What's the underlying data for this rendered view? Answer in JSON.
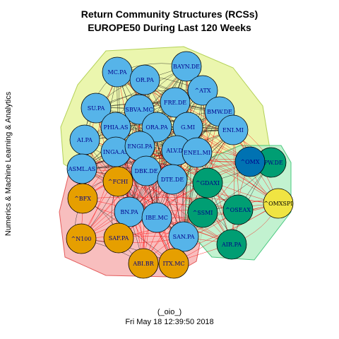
{
  "title_line1": "Return Community Structures (RCSs)",
  "title_line2": "EUROPE50 During Last 120 Weeks",
  "side_label": "Numerics & Machine Learning & Analytics",
  "footer_line1": "(_oio_)",
  "footer_line2": "Fri May 18 12:39:50 2018",
  "colors": {
    "blue": "#56b4e9",
    "orange": "#e69f00",
    "green": "#009e73",
    "dark_blue": "#0072b2",
    "yellow": "#f0e442",
    "edge_within": "#000000",
    "edge_between": "#ff0000",
    "hull_blue": "#e8f5a0",
    "hull_orange": "#f7b3b3",
    "hull_green": "#b8f0c8"
  },
  "nodes": [
    {
      "label": "BAYN.DE",
      "group": "blue"
    },
    {
      "label": "MC.PA",
      "group": "blue"
    },
    {
      "label": "OR.PA",
      "group": "blue"
    },
    {
      "label": "^ATX",
      "group": "blue"
    },
    {
      "label": "SU.PA",
      "group": "blue"
    },
    {
      "label": "SBVA.MC",
      "group": "blue"
    },
    {
      "label": "FRE.DE",
      "group": "blue"
    },
    {
      "label": "BMW.DE",
      "group": "blue"
    },
    {
      "label": "PHIA.AS",
      "group": "blue"
    },
    {
      "label": "ORA.PA",
      "group": "blue"
    },
    {
      "label": "G.MI",
      "group": "blue"
    },
    {
      "label": "ENI.MI",
      "group": "blue"
    },
    {
      "label": "AI.PA",
      "group": "blue"
    },
    {
      "label": "INGA.AS",
      "group": "blue"
    },
    {
      "label": "ENGI.PA",
      "group": "blue"
    },
    {
      "label": "ALV.DE",
      "group": "blue"
    },
    {
      "label": "ENEL.MI",
      "group": "blue"
    },
    {
      "label": "ASML.AS",
      "group": "blue"
    },
    {
      "label": "DBK.DE",
      "group": "blue"
    },
    {
      "label": "DTE.DE",
      "group": "blue"
    },
    {
      "label": "BN.PA",
      "group": "blue"
    },
    {
      "label": "IBE.MC",
      "group": "blue"
    },
    {
      "label": "SAN.PA",
      "group": "blue"
    },
    {
      "label": "^FCHI",
      "group": "orange"
    },
    {
      "label": "^BFX",
      "group": "orange"
    },
    {
      "label": "^N100",
      "group": "orange"
    },
    {
      "label": "SAF.PA",
      "group": "orange"
    },
    {
      "label": "ABI.BR",
      "group": "orange"
    },
    {
      "label": "ITX.MC",
      "group": "orange"
    },
    {
      "label": "^GDAXI",
      "group": "green"
    },
    {
      "label": "^SSMI",
      "group": "green"
    },
    {
      "label": "^OSEAX",
      "group": "green"
    },
    {
      "label": "AIR.PA",
      "group": "green"
    },
    {
      "label": "DPW.DE",
      "group": "green"
    },
    {
      "label": "^OMX",
      "group": "dark_blue"
    },
    {
      "label": "^OMXSPI",
      "group": "yellow"
    }
  ]
}
